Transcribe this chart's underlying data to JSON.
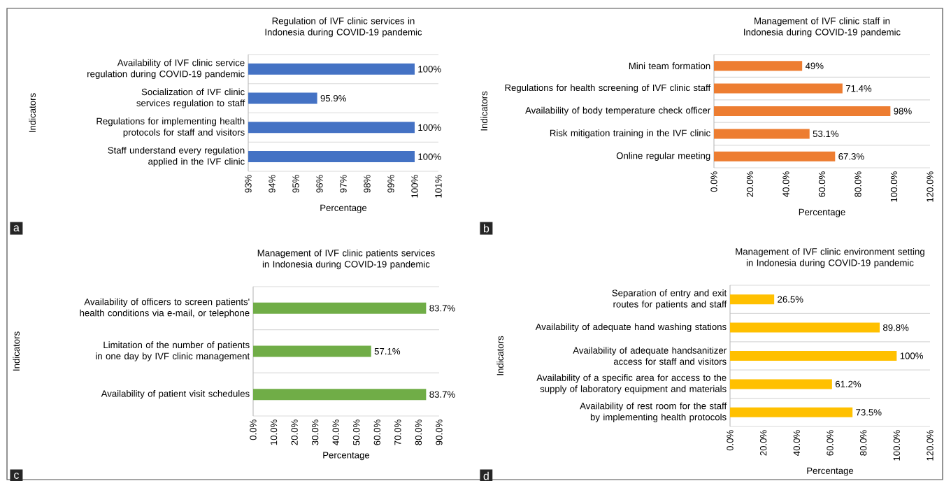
{
  "chart_data": [
    {
      "type": "bar",
      "orientation": "horizontal",
      "title": "Regulation of IVF clinic services in Indonesia during COVID-19 pandemic",
      "xlabel": "Percentage",
      "ylabel": "Indicators",
      "categories": [
        "Availability of IVF clinic service regulation during COVID-19 pandemic",
        "Socialization of IVF clinic services regulation to staff",
        "Regulations for implementing health protocols for staff and visitors",
        "Staff understand every regulation applied in the IVF clinic"
      ],
      "values": [
        100,
        95.9,
        100,
        100
      ],
      "value_labels": [
        "100%",
        "95.9%",
        "100%",
        "100%"
      ],
      "color": "#4472c4",
      "xlim": [
        93,
        101
      ],
      "xticks": [
        {
          "value": 93,
          "label": "93%"
        },
        {
          "value": 94,
          "label": "94%"
        },
        {
          "value": 95,
          "label": "95%"
        },
        {
          "value": 96,
          "label": "96%"
        },
        {
          "value": 97,
          "label": "97%"
        },
        {
          "value": 98,
          "label": "98%"
        },
        {
          "value": 99,
          "label": "99%"
        },
        {
          "value": 100,
          "label": "100%"
        },
        {
          "value": 101,
          "label": "101%"
        }
      ],
      "grid": "y",
      "annotations": [
        "a"
      ]
    },
    {
      "type": "bar",
      "orientation": "horizontal",
      "title": "Management of IVF clinic staff in Indonesia during COVID-19 pandemic",
      "xlabel": "Percentage",
      "ylabel": "Indicators",
      "categories": [
        "Mini team formation",
        "Regulations for health screening of IVF clinic staff",
        "Availability of body temperature check officer",
        "Risk mitigation training in the IVF clinic",
        "Online regular meeting"
      ],
      "values": [
        49,
        71.4,
        98,
        53.1,
        67.3
      ],
      "value_labels": [
        "49%",
        "71.4%",
        "98%",
        "53.1%",
        "67.3%"
      ],
      "color": "#ed7d31",
      "xlim": [
        0,
        120
      ],
      "xticks": [
        {
          "value": 0,
          "label": "0.0%"
        },
        {
          "value": 20,
          "label": "20.0%"
        },
        {
          "value": 40,
          "label": "40.0%"
        },
        {
          "value": 60,
          "label": "60.0%"
        },
        {
          "value": 80,
          "label": "80.0%"
        },
        {
          "value": 100,
          "label": "100.0%"
        },
        {
          "value": 120,
          "label": "120.0%"
        }
      ],
      "grid": "y",
      "annotations": [
        "b"
      ]
    },
    {
      "type": "bar",
      "orientation": "horizontal",
      "title": "Management of IVF clinic patients services in Indonesia during COVID-19 pandemic",
      "xlabel": "Percentage",
      "ylabel": "Indicators",
      "categories": [
        "Availability of officers to screen patients' health conditions via e-mail, or telephone",
        "Limitation of the number of patients in one day by IVF clinic management",
        "Availability of patient visit schedules"
      ],
      "values": [
        83.7,
        57.1,
        83.7
      ],
      "value_labels": [
        "83.7%",
        "57.1%",
        "83.7%"
      ],
      "color": "#70ad47",
      "xlim": [
        0,
        90
      ],
      "xticks": [
        {
          "value": 0,
          "label": "0.0%"
        },
        {
          "value": 10,
          "label": "10.0%"
        },
        {
          "value": 20,
          "label": "20.0%"
        },
        {
          "value": 30,
          "label": "30.0%"
        },
        {
          "value": 40,
          "label": "40.0%"
        },
        {
          "value": 50,
          "label": "50.0%"
        },
        {
          "value": 60,
          "label": "60.0%"
        },
        {
          "value": 70,
          "label": "70.0%"
        },
        {
          "value": 80,
          "label": "80.0%"
        },
        {
          "value": 90,
          "label": "90.0%"
        }
      ],
      "grid": "y",
      "annotations": [
        "c"
      ]
    },
    {
      "type": "bar",
      "orientation": "horizontal",
      "title": "Management of IVF clinic environment setting in Indonesia during COVID-19 pandemic",
      "xlabel": "Percentage",
      "ylabel": "Indicators",
      "categories": [
        "Separation of entry and exit routes for patients and staff",
        "Availability of adequate hand washing stations",
        "Availability of adequate handsanitizer access for staff and visitors",
        "Availability of a specific area for access to the supply of laboratory equipment and materials",
        "Availability of rest room for the staff by implementing health protocols"
      ],
      "values": [
        26.5,
        89.8,
        100,
        61.2,
        73.5
      ],
      "value_labels": [
        "26.5%",
        "89.8%",
        "100%",
        "61.2%",
        "73.5%"
      ],
      "color": "#ffc000",
      "xlim": [
        0,
        120
      ],
      "xticks": [
        {
          "value": 0,
          "label": "0.0%"
        },
        {
          "value": 20,
          "label": "20.0%"
        },
        {
          "value": 40,
          "label": "40.0%"
        },
        {
          "value": 60,
          "label": "60.0%"
        },
        {
          "value": 80,
          "label": "80.0%"
        },
        {
          "value": 100,
          "label": "100.0%"
        },
        {
          "value": 120,
          "label": "120.0%"
        }
      ],
      "grid": "y",
      "annotations": [
        "d"
      ]
    }
  ]
}
